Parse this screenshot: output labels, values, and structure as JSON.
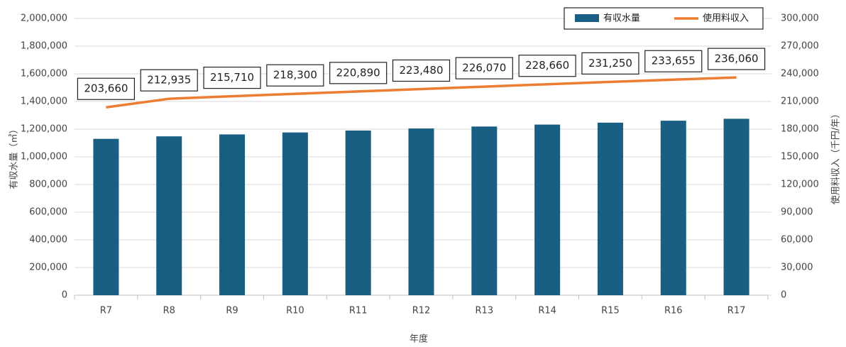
{
  "chart_data": {
    "type": "bar",
    "categories": [
      "R7",
      "R8",
      "R9",
      "R10",
      "R11",
      "R12",
      "R13",
      "R14",
      "R15",
      "R16",
      "R17"
    ],
    "series": [
      {
        "name": "有収水量",
        "type": "bar",
        "color": "#195e83",
        "values": [
          1130000,
          1148000,
          1162000,
          1176000,
          1190000,
          1205000,
          1219000,
          1233000,
          1247000,
          1261000,
          1275000
        ]
      },
      {
        "name": "使用料収入",
        "type": "line",
        "axis": "y2",
        "color": "#ed7d31",
        "values": [
          203660,
          212935,
          215710,
          218300,
          220890,
          223480,
          226070,
          228660,
          231250,
          233655,
          236060
        ],
        "value_labels": [
          "203,660",
          "212,935",
          "215,710",
          "218,300",
          "220,890",
          "223,480",
          "226,070",
          "228,660",
          "231,250",
          "233,655",
          "236,060"
        ]
      }
    ],
    "ylabel": "有収水量（㎥）",
    "y2label": "使用料収入（千円/年）",
    "xlabel": "年度",
    "ylim": [
      0,
      2000000
    ],
    "yticks": [
      0,
      {
        "value": 200000,
        "label": "200,000"
      },
      {
        "value": 400000,
        "label": "400,000"
      },
      {
        "value": 600000,
        "label": "600,000"
      },
      {
        "value": 800000,
        "label": "800,000"
      },
      {
        "value": 1000000,
        "label": "1,000,000"
      },
      {
        "value": 1200000,
        "label": "1,200,000"
      },
      {
        "value": 1400000,
        "label": "1,400,000"
      },
      {
        "value": 1600000,
        "label": "1,600,000"
      },
      {
        "value": 1800000,
        "label": "1,800,000"
      },
      {
        "value": 2000000,
        "label": "2,000,000"
      }
    ],
    "y2lim": [
      0,
      300000
    ],
    "y2ticks": [
      0,
      {
        "value": 30000,
        "label": "30,000"
      },
      {
        "value": 60000,
        "label": "60,000"
      },
      {
        "value": 90000,
        "label": "90,000"
      },
      {
        "value": 120000,
        "label": "120,000"
      },
      {
        "value": 150000,
        "label": "150,000"
      },
      {
        "value": 180000,
        "label": "180,000"
      },
      {
        "value": 210000,
        "label": "210,000"
      },
      {
        "value": 240000,
        "label": "240,000"
      },
      {
        "value": 270000,
        "label": "270,000"
      },
      {
        "value": 300000,
        "label": "300,000"
      }
    ],
    "grid": true,
    "legend": "top-right"
  }
}
